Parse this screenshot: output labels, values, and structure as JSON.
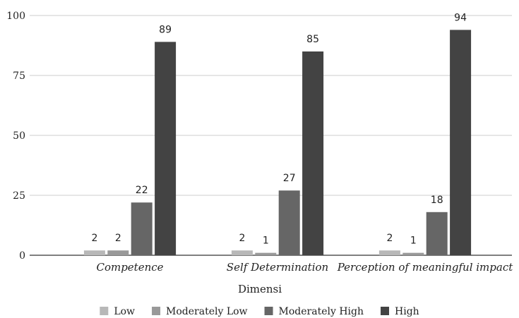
{
  "chart_data": {
    "type": "bar",
    "categories": [
      "Competence",
      "Self Determination",
      "Perception of meaningful impact"
    ],
    "series": [
      {
        "name": "Low",
        "color": "#b8b8b8",
        "values": [
          2,
          2,
          2
        ]
      },
      {
        "name": "Moderately Low",
        "color": "#999999",
        "values": [
          2,
          1,
          1
        ]
      },
      {
        "name": "Moderately High",
        "color": "#666666",
        "values": [
          22,
          27,
          18
        ]
      },
      {
        "name": "High",
        "color": "#434343",
        "values": [
          89,
          85,
          94
        ]
      }
    ],
    "yticks": [
      0,
      25,
      50,
      75,
      100
    ],
    "ylim": [
      0,
      100
    ],
    "xlabel": "Dimensi",
    "ylabel": "",
    "title": "",
    "grid": true,
    "legend_position": "bottom"
  }
}
